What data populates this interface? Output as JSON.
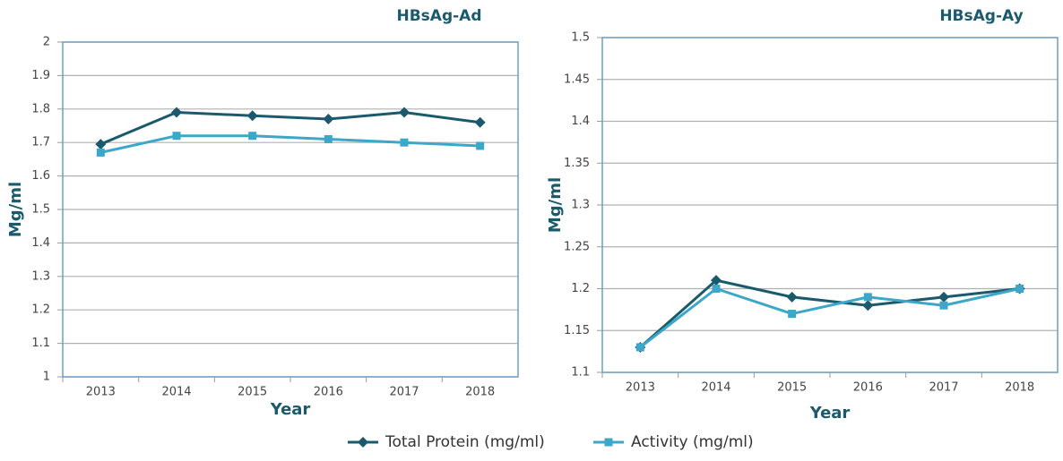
{
  "chart_data": [
    {
      "type": "line",
      "title": "HBsAg-Ad",
      "ylabel": "Mg/ml",
      "xlabel": "Year",
      "categories": [
        "2013",
        "2014",
        "2015",
        "2016",
        "2017",
        "2018"
      ],
      "ylim": [
        1,
        2
      ],
      "yticks": [
        1,
        1.1,
        1.2,
        1.3,
        1.4,
        1.5,
        1.6,
        1.7,
        1.8,
        1.9,
        2
      ],
      "grid": true,
      "series": [
        {
          "name": "Total Protein (mg/ml)",
          "color": "#1b5a6d",
          "marker": "diamond",
          "values": [
            1.695,
            1.79,
            1.78,
            1.77,
            1.79,
            1.76
          ]
        },
        {
          "name": "Activity (mg/ml)",
          "color": "#3ba7c9",
          "marker": "square",
          "values": [
            1.67,
            1.72,
            1.72,
            1.71,
            1.7,
            1.69
          ]
        }
      ]
    },
    {
      "type": "line",
      "title": "HBsAg-Ay",
      "ylabel": "Mg/ml",
      "xlabel": "Year",
      "categories": [
        "2013",
        "2014",
        "2015",
        "2016",
        "2017",
        "2018"
      ],
      "ylim": [
        1.1,
        1.5
      ],
      "yticks": [
        1.1,
        1.15,
        1.2,
        1.25,
        1.3,
        1.35,
        1.4,
        1.45,
        1.5
      ],
      "grid": true,
      "series": [
        {
          "color": "#1b5a6d",
          "marker": "diamond",
          "values": [
            1.13,
            1.21,
            1.19,
            1.18,
            1.19,
            1.2
          ]
        },
        {
          "color": "#3ba7c9",
          "marker": "square",
          "values": [
            1.13,
            1.2,
            1.17,
            1.19,
            1.18,
            1.2
          ]
        }
      ]
    }
  ]
}
